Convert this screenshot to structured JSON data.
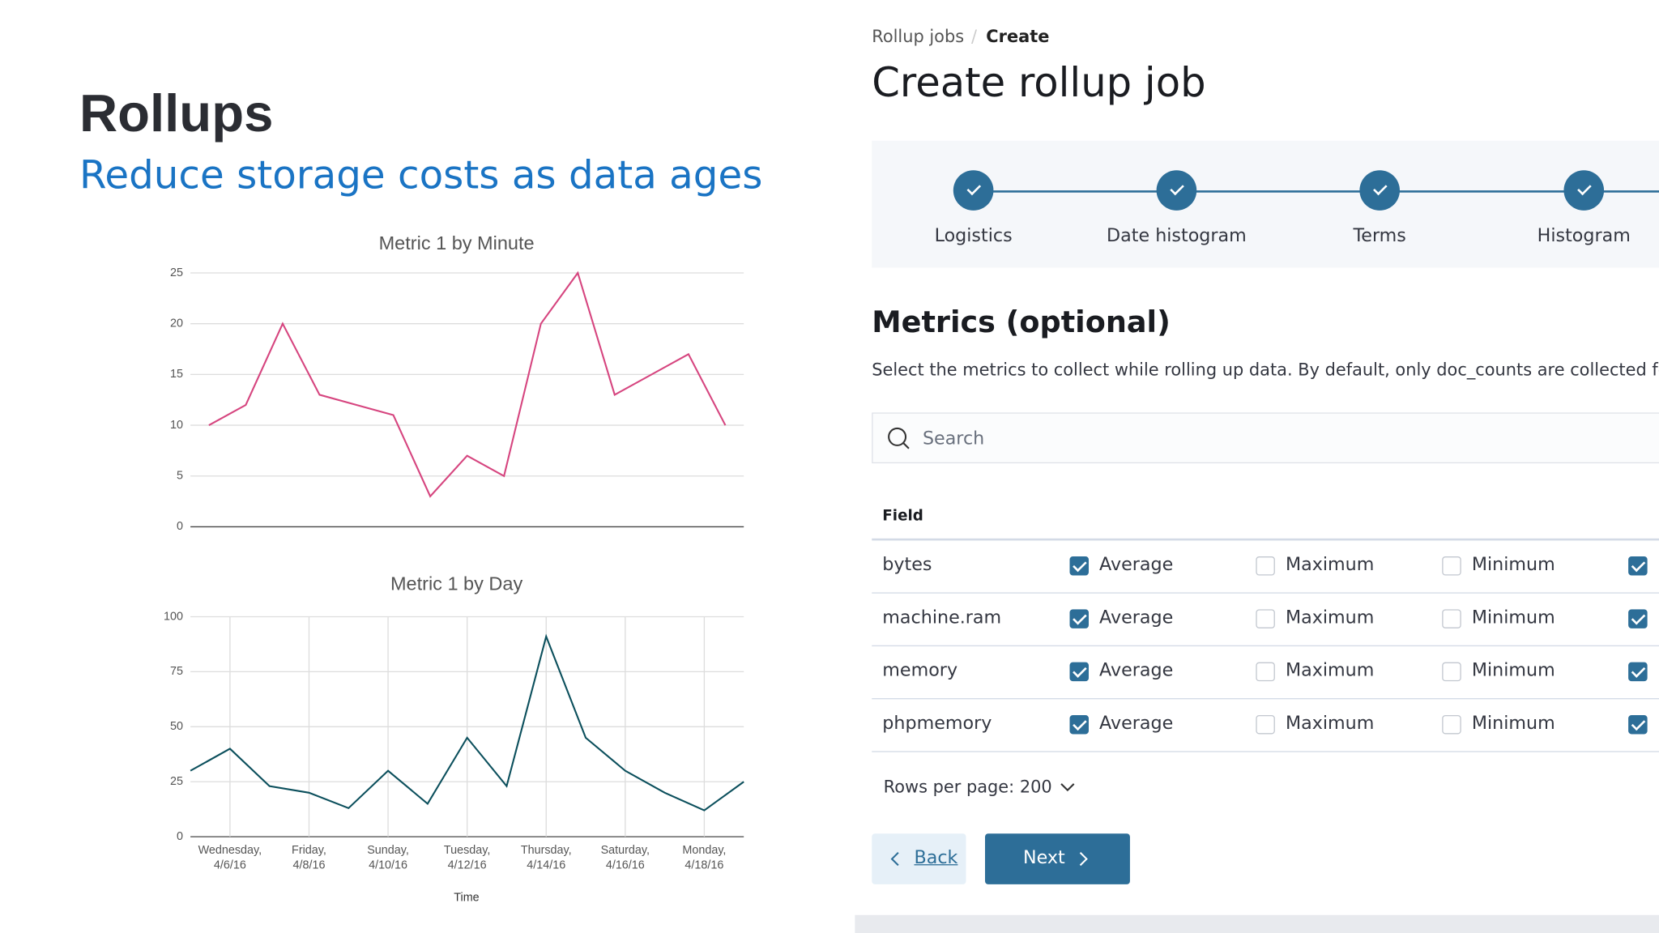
{
  "slide": {
    "title": "Rollups",
    "subtitle": "Reduce storage costs as data ages"
  },
  "chart_data": [
    {
      "type": "line",
      "title": "Metric 1 by Minute",
      "color": "#d6457f",
      "categories": [
        null,
        null,
        null,
        null,
        null,
        null,
        null,
        null,
        null,
        null,
        null,
        null,
        null,
        null,
        null
      ],
      "values": [
        10,
        12,
        20,
        13,
        12,
        11,
        3,
        7,
        5,
        20,
        25,
        13,
        15,
        17,
        10
      ],
      "ylim": [
        0,
        25
      ],
      "yticks": [
        0,
        5,
        10,
        15,
        20,
        25
      ],
      "grid": true
    },
    {
      "type": "line",
      "title": "Metric 1 by Day",
      "color": "#0b4f5c",
      "x_label": "Time",
      "categories": [
        null,
        "Wednesday,\n4/6/16",
        null,
        "Friday,\n4/8/16",
        null,
        "Sunday,\n4/10/16",
        null,
        "Tuesday,\n4/12/16",
        null,
        "Thursday,\n4/14/16",
        null,
        "Saturday,\n4/16/16",
        null,
        "Monday,\n4/18/16",
        null
      ],
      "values": [
        30,
        40,
        23,
        20,
        13,
        30,
        15,
        45,
        23,
        91,
        45,
        30,
        20,
        12,
        25
      ],
      "ylim": [
        0,
        100
      ],
      "yticks": [
        0,
        25,
        50,
        75,
        100
      ],
      "grid": true,
      "xgrid": true
    }
  ],
  "app": {
    "breadcrumbs": [
      "Rollup jobs",
      "Create"
    ],
    "title": "Create rollup job",
    "steps": [
      "Logistics",
      "Date histogram",
      "Terms",
      "Histogram"
    ],
    "section_title": "Metrics (optional)",
    "description": "Select the metrics to collect while rolling up data. By default, only doc_counts are collected for",
    "search_placeholder": "Search",
    "table_header": "Field",
    "metric_labels": [
      "Average",
      "Maximum",
      "Minimum"
    ],
    "rows": [
      {
        "field": "bytes",
        "checks": [
          true,
          false,
          false,
          true
        ]
      },
      {
        "field": "machine.ram",
        "checks": [
          true,
          false,
          false,
          true
        ]
      },
      {
        "field": "memory",
        "checks": [
          true,
          false,
          false,
          true
        ]
      },
      {
        "field": "phpmemory",
        "checks": [
          true,
          false,
          false,
          true
        ]
      }
    ],
    "pagination": "Rows per page: 200",
    "back": "Back",
    "next": "Next"
  }
}
